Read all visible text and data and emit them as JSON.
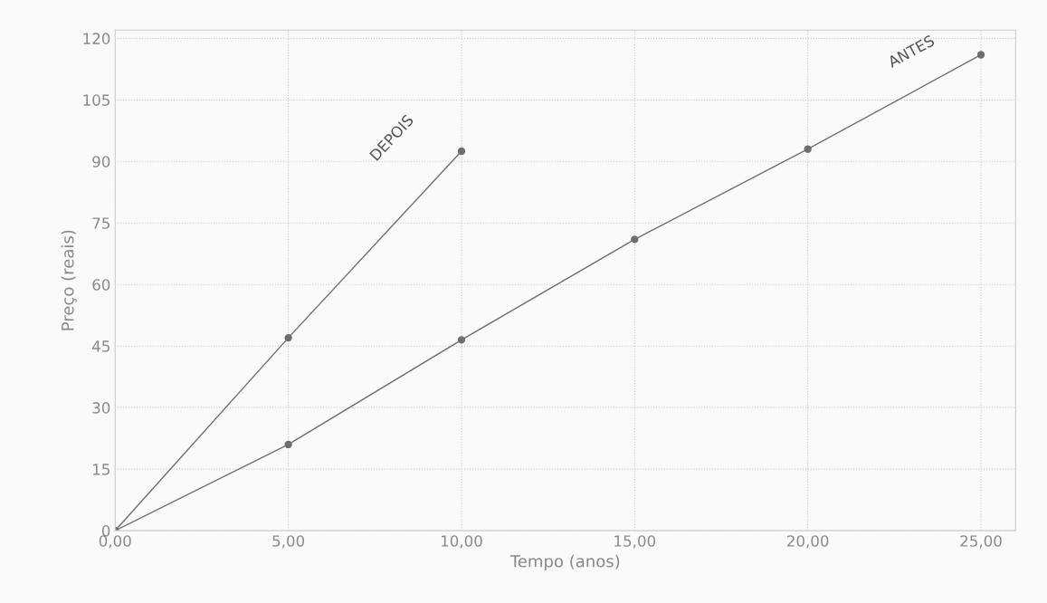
{
  "chart_data": {
    "type": "line",
    "xlabel": "Tempo (anos)",
    "ylabel": "Preço (reais)",
    "series": [
      {
        "name": "DEPOIS",
        "color": "#6e6e6e",
        "x": [
          0,
          5,
          10
        ],
        "values": [
          0,
          47,
          92.5
        ]
      },
      {
        "name": "ANTES",
        "color": "#6e6e6e",
        "x": [
          0,
          5,
          10,
          15,
          20,
          25
        ],
        "values": [
          0,
          21,
          46.5,
          71,
          93,
          116
        ]
      }
    ],
    "xlim": [
      0,
      26
    ],
    "ylim": [
      0,
      122
    ],
    "xticks": [
      {
        "value": 0,
        "label": "0,00"
      },
      {
        "value": 5,
        "label": "5,00"
      },
      {
        "value": 10,
        "label": "10,00"
      },
      {
        "value": 15,
        "label": "15,00"
      },
      {
        "value": 20,
        "label": "20,00"
      },
      {
        "value": 25,
        "label": "25,00"
      }
    ],
    "yticks": [
      0,
      15,
      30,
      45,
      60,
      75,
      90,
      105,
      120
    ],
    "grid": true,
    "marker": "circle",
    "line_style": "solid",
    "legend": false
  }
}
